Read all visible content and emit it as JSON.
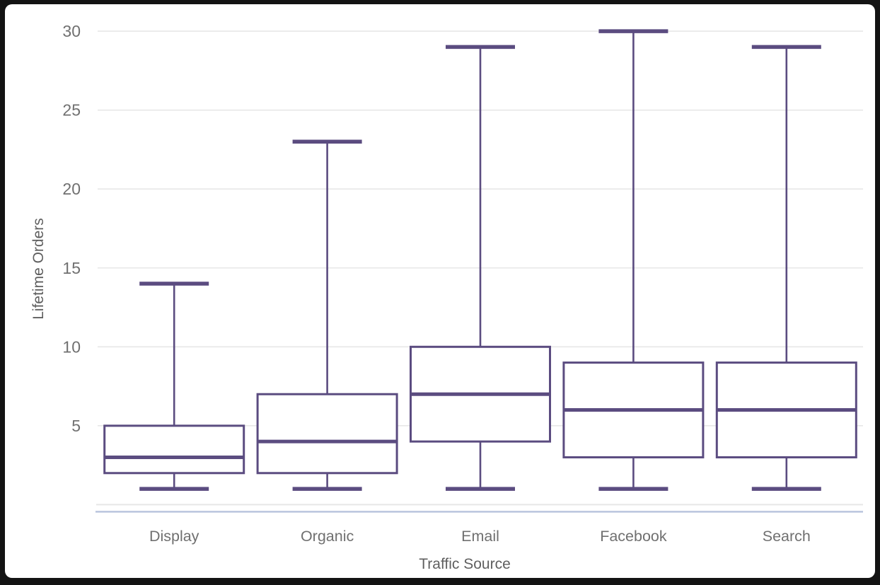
{
  "chart_data": {
    "type": "boxplot",
    "title": "",
    "xlabel": "Traffic Source",
    "ylabel": "Lifetime Orders",
    "categories": [
      "Display",
      "Organic",
      "Email",
      "Facebook",
      "Search"
    ],
    "series": [
      {
        "name": "Display",
        "min": 1,
        "q1": 2,
        "median": 3,
        "q3": 5,
        "max": 14
      },
      {
        "name": "Organic",
        "min": 1,
        "q1": 2,
        "median": 4,
        "q3": 7,
        "max": 23
      },
      {
        "name": "Email",
        "min": 1,
        "q1": 4,
        "median": 7,
        "q3": 10,
        "max": 29
      },
      {
        "name": "Facebook",
        "min": 1,
        "q1": 3,
        "median": 6,
        "q3": 9,
        "max": 30
      },
      {
        "name": "Search",
        "min": 1,
        "q1": 3,
        "median": 6,
        "q3": 9,
        "max": 29
      }
    ],
    "yticks": [
      5,
      10,
      15,
      20,
      25,
      30
    ],
    "ylim": [
      0,
      31
    ],
    "grid": true,
    "legend": false,
    "colors": {
      "box_stroke": "#5b4c80",
      "box_fill": "#ffffff",
      "grid_line": "#e7e7e7",
      "tick_label": "#707070",
      "axis_label": "#5f5f5f",
      "baseline_accent": "#b6c2dc"
    }
  }
}
